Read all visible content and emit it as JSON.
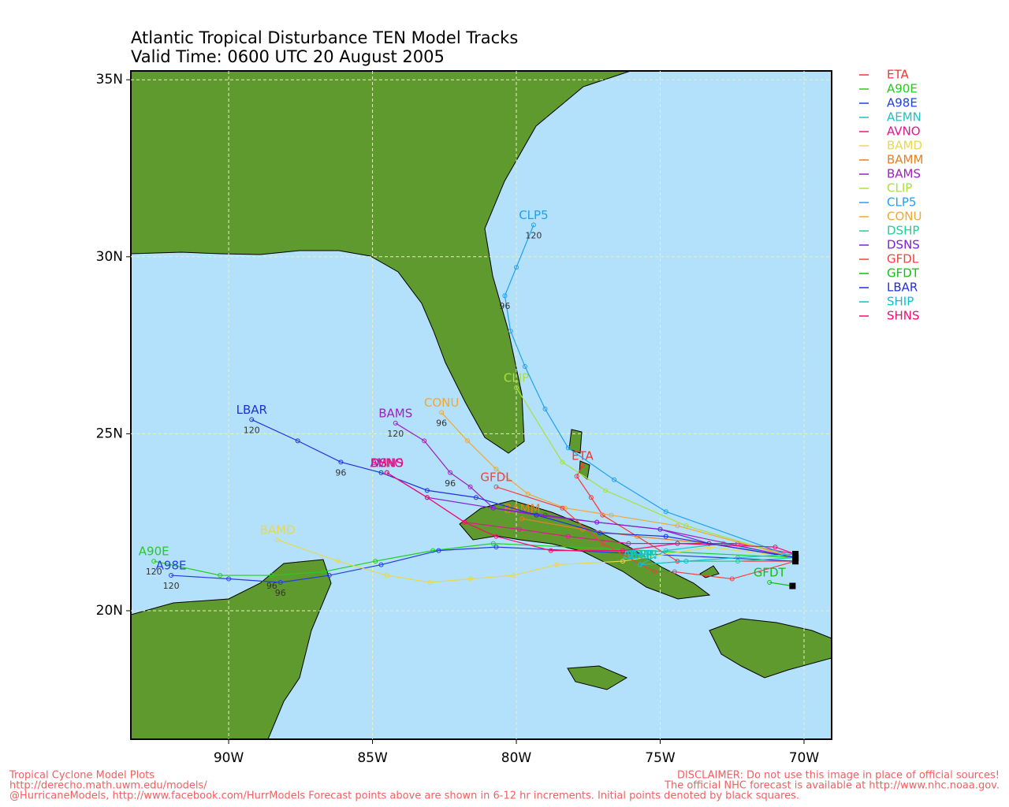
{
  "chart_data": {
    "type": "track-map",
    "title": "Atlantic Tropical Disturbance TEN Model Tracks",
    "subtitle": "Valid Time: 0600 UTC 20 August 2005",
    "xlim": [
      -93.4,
      -69.04
    ],
    "ylim": [
      16.37,
      35.25
    ],
    "xticks": [
      {
        "value": -90,
        "label": "90W"
      },
      {
        "value": -85,
        "label": "85W"
      },
      {
        "value": -80,
        "label": "80W"
      },
      {
        "value": -75,
        "label": "75W"
      },
      {
        "value": -70,
        "label": "70W"
      }
    ],
    "yticks": [
      {
        "value": 20,
        "label": "20N"
      },
      {
        "value": 25,
        "label": "25N"
      },
      {
        "value": 30,
        "label": "30N"
      },
      {
        "value": 35,
        "label": "35N"
      }
    ],
    "grid": true,
    "series": [
      {
        "name": "ETA",
        "color": "#ff3030",
        "x": [
          -70.3,
          -74.4,
          -77.0,
          -77.4,
          -77.9,
          -77.7
        ],
        "values": [
          21.4,
          21.4,
          22.7,
          23.2,
          23.8,
          24.1
        ]
      },
      {
        "name": "A90E",
        "color": "#22cc22",
        "x": [
          -70.3,
          -80.8,
          -82.9,
          -84.9,
          -86.7,
          -88.5,
          -90.3,
          -92.6
        ],
        "values": [
          21.5,
          21.9,
          21.7,
          21.4,
          21.1,
          21.0,
          21.0,
          21.4
        ],
        "point_labels": [
          null,
          null,
          null,
          null,
          null,
          "96",
          null,
          "120"
        ]
      },
      {
        "name": "A98E",
        "color": "#2040e0",
        "x": [
          -70.3,
          -80.7,
          -82.7,
          -84.7,
          -86.5,
          -88.2,
          -90.0,
          -92.0
        ],
        "values": [
          21.4,
          21.8,
          21.7,
          21.3,
          21.0,
          20.8,
          20.9,
          21.0
        ],
        "point_labels": [
          null,
          null,
          null,
          null,
          null,
          "96",
          null,
          "120"
        ]
      },
      {
        "name": "AEMN",
        "color": "#20c0c0",
        "x": [
          -70.3,
          -72.8,
          -74.8,
          -75.7
        ],
        "values": [
          21.5,
          21.9,
          21.7,
          21.3
        ]
      },
      {
        "name": "AVNO",
        "color": "#e01890",
        "x": [
          -70.3,
          -72.3,
          -74.4,
          -76.1,
          -78.2,
          -79.9,
          -81.8,
          -83.1,
          -84.5
        ],
        "values": [
          21.6,
          21.9,
          21.9,
          21.9,
          22.1,
          22.3,
          22.5,
          23.2,
          23.9
        ]
      },
      {
        "name": "BAMD",
        "color": "#e8d850",
        "x": [
          -70.3,
          -73.3,
          -76.3,
          -78.6,
          -80.1,
          -81.6,
          -83.0,
          -84.5,
          -86.2,
          -88.3
        ],
        "values": [
          21.5,
          21.8,
          21.4,
          21.3,
          21.0,
          20.9,
          20.8,
          21.0,
          21.4,
          22.0
        ]
      },
      {
        "name": "BAMM",
        "color": "#e88020",
        "x": [
          -70.3,
          -73.3,
          -75.8,
          -77.7,
          -79.8
        ],
        "values": [
          21.5,
          21.9,
          22.1,
          22.3,
          22.6
        ]
      },
      {
        "name": "BAMS",
        "color": "#a020c0",
        "x": [
          -70.3,
          -75.0,
          -77.2,
          -79.3,
          -80.8,
          -81.6,
          -82.3,
          -83.2,
          -84.2
        ],
        "values": [
          21.5,
          22.3,
          22.5,
          22.7,
          22.9,
          23.5,
          23.9,
          24.8,
          25.3
        ],
        "point_labels": [
          null,
          null,
          null,
          null,
          null,
          null,
          "96",
          null,
          "120"
        ]
      },
      {
        "name": "CLIP",
        "color": "#a8e040",
        "x": [
          -70.3,
          -74.1,
          -76.9,
          -78.4,
          -80.0
        ],
        "values": [
          21.5,
          22.4,
          23.4,
          24.2,
          26.3
        ]
      },
      {
        "name": "CLP5",
        "color": "#20a0f0",
        "x": [
          -70.3,
          -74.8,
          -76.6,
          -78.2,
          -79.0,
          -79.7,
          -80.2,
          -80.4,
          -80.0,
          -79.4
        ],
        "values": [
          21.5,
          22.8,
          23.7,
          24.6,
          25.7,
          26.9,
          27.9,
          28.9,
          29.7,
          30.9
        ],
        "point_labels": [
          null,
          null,
          null,
          null,
          null,
          null,
          null,
          "96",
          null,
          "120"
        ]
      },
      {
        "name": "CONU",
        "color": "#f0a830",
        "x": [
          -70.3,
          -74.4,
          -76.7,
          -78.3,
          -79.6,
          -80.7,
          -81.7,
          -82.6
        ],
        "values": [
          21.5,
          22.4,
          22.7,
          22.9,
          23.3,
          24.0,
          24.8,
          25.6
        ],
        "point_labels": [
          null,
          null,
          null,
          null,
          null,
          null,
          null,
          "96"
        ]
      },
      {
        "name": "DSHP",
        "color": "#20d090",
        "x": [
          -70.3,
          -72.3,
          -74.1,
          -75.7
        ],
        "values": [
          21.5,
          21.4,
          21.4,
          21.3
        ]
      },
      {
        "name": "DSNS",
        "color": "#8020d0",
        "x": [
          -70.3,
          -73.3,
          -75.0,
          -77.2,
          -79.0,
          -80.8,
          -83.1,
          -84.5
        ],
        "values": [
          21.5,
          21.9,
          22.3,
          22.5,
          22.7,
          22.9,
          23.2,
          23.9
        ]
      },
      {
        "name": "GFDL",
        "color": "#f04040",
        "x": [
          -70.3,
          -72.5,
          -74.5,
          -75.2,
          -77.0,
          -78.4,
          -80.7
        ],
        "values": [
          21.4,
          20.9,
          21.1,
          21.1,
          21.9,
          22.9,
          23.5
        ]
      },
      {
        "name": "GFDT",
        "color": "#10c010",
        "x": [
          -70.4,
          -71.2
        ],
        "values": [
          20.7,
          20.8
        ]
      },
      {
        "name": "LBAR",
        "color": "#2030e0",
        "x": [
          -70.3,
          -74.8,
          -77.1,
          -79.3,
          -81.4,
          -83.1,
          -84.7,
          -86.1,
          -87.6,
          -89.2
        ],
        "values": [
          21.5,
          22.1,
          22.2,
          22.7,
          23.2,
          23.4,
          23.9,
          24.2,
          24.8,
          25.4
        ],
        "point_labels": [
          null,
          null,
          null,
          null,
          null,
          null,
          null,
          "96",
          null,
          "120"
        ]
      },
      {
        "name": "SHIP",
        "color": "#10c0d0",
        "x": [
          -70.3,
          -72.3,
          -74.1,
          -75.7
        ],
        "values": [
          21.6,
          21.5,
          21.4,
          21.3
        ]
      },
      {
        "name": "SHNS",
        "color": "#f01070",
        "x": [
          -70.3,
          -71.0,
          -74.4,
          -76.3,
          -78.8,
          -80.7,
          -81.8,
          -83.1,
          -84.5
        ],
        "values": [
          21.6,
          21.8,
          21.9,
          21.7,
          21.7,
          22.1,
          22.5,
          23.2,
          23.9
        ]
      }
    ]
  },
  "footer": {
    "left": [
      "Tropical Cyclone Model Plots",
      "http://derecho.math.uwm.edu/models/",
      "@HurricaneModels, http://www.facebook.com/HurrModels  Forecast points above are shown in 6-12 hr increments. Initial points denoted by black squares."
    ],
    "right": [
      "DISCLAIMER: Do not use this image in place of official sources!",
      "The official NHC forecast is available at http://www.nhc.noaa.gov."
    ]
  }
}
